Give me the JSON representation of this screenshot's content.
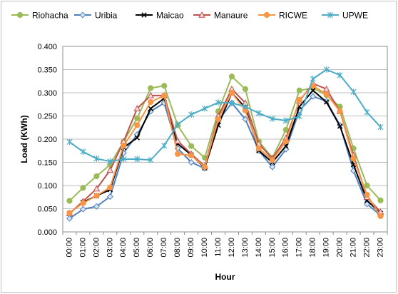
{
  "chart_data": {
    "type": "line",
    "xlabel": "Hour",
    "ylabel": "Load (KWh)",
    "ylim": [
      0,
      0.4
    ],
    "yticks": [
      "0.000",
      "0.050",
      "0.100",
      "0.150",
      "0.200",
      "0.250",
      "0.300",
      "0.350",
      "0.400"
    ],
    "ytick_values": [
      0,
      0.05,
      0.1,
      0.15,
      0.2,
      0.25,
      0.3,
      0.35,
      0.4
    ],
    "grid": "horizontal",
    "legend_position": "top",
    "categories": [
      "00:00",
      "01:00",
      "02:00",
      "03:00",
      "04:00",
      "05:00",
      "06:00",
      "07:00",
      "08:00",
      "09:00",
      "10:00",
      "11:00",
      "12:00",
      "13:00",
      "14:00",
      "15:00",
      "16:00",
      "17:00",
      "18:00",
      "19:00",
      "20:00",
      "21:00",
      "22:00",
      "23:00"
    ],
    "series": [
      {
        "name": "Riohacha",
        "color": "#9bbb59",
        "marker": "circle",
        "values": [
          0.067,
          0.095,
          0.12,
          0.145,
          0.195,
          0.245,
          0.31,
          0.315,
          0.23,
          0.185,
          0.16,
          0.26,
          0.335,
          0.308,
          0.195,
          0.16,
          0.22,
          0.305,
          0.31,
          0.295,
          0.27,
          0.18,
          0.1,
          0.068
        ]
      },
      {
        "name": "Uribia",
        "color": "#4f81bd",
        "marker": "diamond",
        "values": [
          0.029,
          0.049,
          0.055,
          0.076,
          0.17,
          0.21,
          0.26,
          0.278,
          0.18,
          0.15,
          0.137,
          0.24,
          0.278,
          0.243,
          0.175,
          0.14,
          0.178,
          0.262,
          0.292,
          0.282,
          0.23,
          0.132,
          0.06,
          0.036
        ]
      },
      {
        "name": "Maicao",
        "color": "#000000",
        "marker": "x",
        "values": [
          0.04,
          0.064,
          0.078,
          0.091,
          0.182,
          0.203,
          0.266,
          0.288,
          0.19,
          0.166,
          0.138,
          0.23,
          0.3,
          0.268,
          0.175,
          0.15,
          0.185,
          0.27,
          0.305,
          0.28,
          0.228,
          0.145,
          0.068,
          0.04
        ]
      },
      {
        "name": "Manaure",
        "color": "#c0504d",
        "marker": "triangle",
        "values": [
          0.04,
          0.066,
          0.093,
          0.133,
          0.195,
          0.266,
          0.294,
          0.294,
          0.196,
          0.168,
          0.142,
          0.25,
          0.308,
          0.278,
          0.19,
          0.158,
          0.202,
          0.282,
          0.32,
          0.308,
          0.26,
          0.165,
          0.075,
          0.043
        ]
      },
      {
        "name": "RICWE",
        "color": "#f79646",
        "marker": "circle",
        "values": [
          0.041,
          0.062,
          0.078,
          0.096,
          0.186,
          0.23,
          0.28,
          0.294,
          0.168,
          0.165,
          0.14,
          0.243,
          0.3,
          0.262,
          0.18,
          0.155,
          0.195,
          0.285,
          0.315,
          0.297,
          0.26,
          0.158,
          0.08,
          0.034
        ]
      },
      {
        "name": "UPWE",
        "color": "#4bacc6",
        "marker": "star",
        "values": [
          0.194,
          0.173,
          0.158,
          0.152,
          0.157,
          0.157,
          0.155,
          0.186,
          0.232,
          0.253,
          0.266,
          0.279,
          0.278,
          0.27,
          0.256,
          0.244,
          0.24,
          0.249,
          0.33,
          0.35,
          0.338,
          0.302,
          0.258,
          0.226
        ]
      }
    ]
  }
}
